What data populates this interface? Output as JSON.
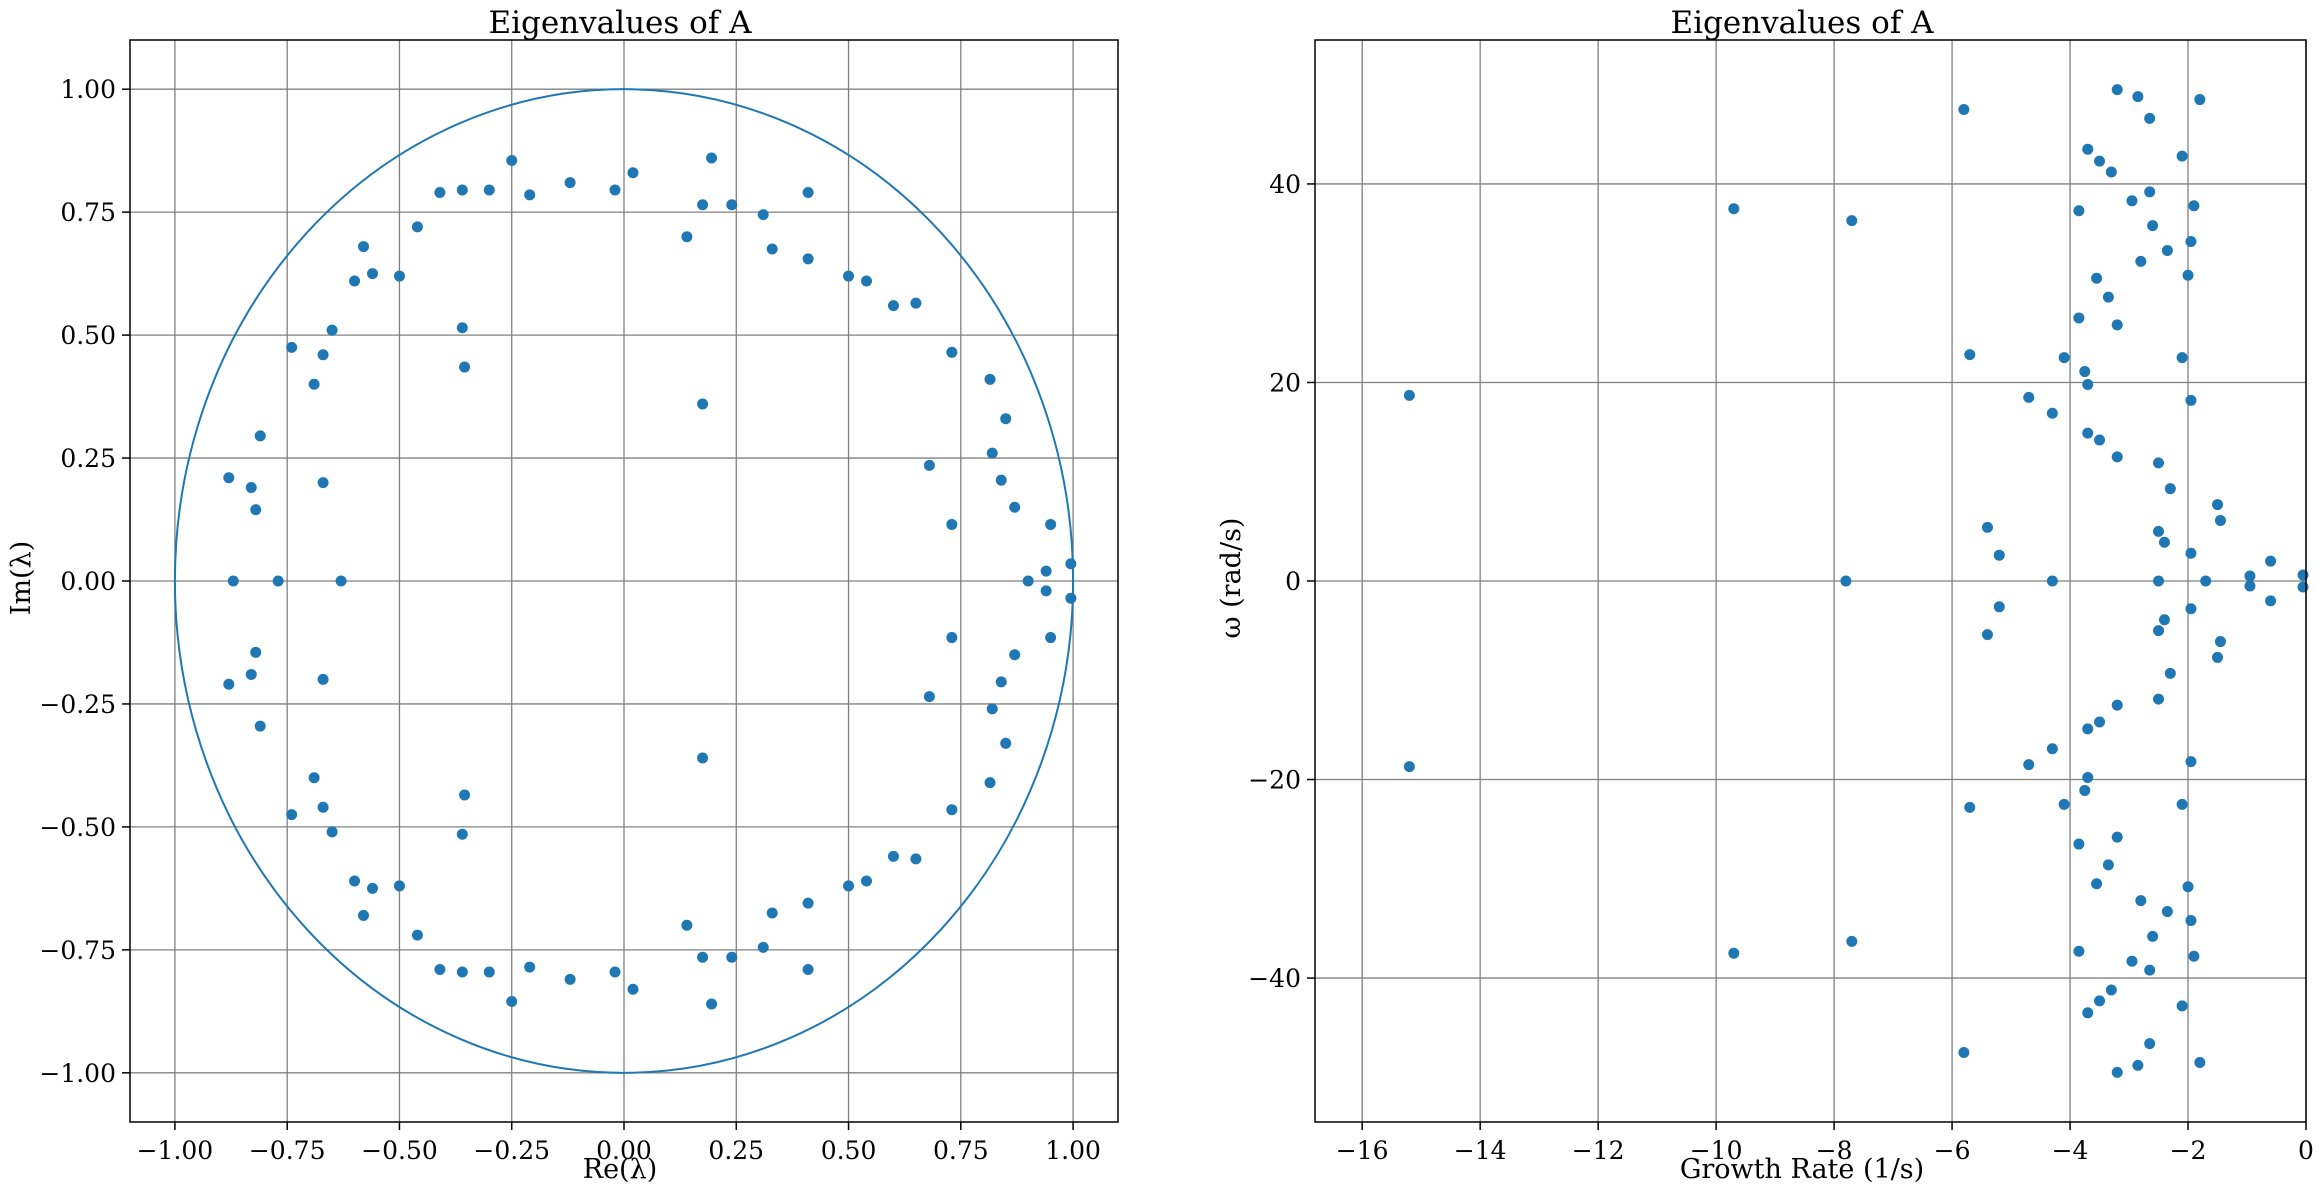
{
  "colors": {
    "marker": "#1f77b4",
    "circle": "#1f77b4",
    "grid": "#808080",
    "axes": "#000000"
  },
  "chart_data": [
    {
      "type": "scatter",
      "title": "Eigenvalues of A",
      "xlabel": "Re(λ)",
      "ylabel": "Im(λ)",
      "xlim": [
        -1.1,
        1.1
      ],
      "ylim": [
        -1.1,
        1.1
      ],
      "xticks": [
        -1.0,
        -0.75,
        -0.5,
        -0.25,
        0.0,
        0.25,
        0.5,
        0.75,
        1.0
      ],
      "xtick_labels": [
        "−1.00",
        "−0.75",
        "−0.50",
        "−0.25",
        "0.00",
        "0.25",
        "0.50",
        "0.75",
        "1.00"
      ],
      "yticks": [
        1.0,
        0.75,
        0.5,
        0.25,
        0.0,
        -0.25,
        -0.5,
        -0.75,
        -1.0
      ],
      "ytick_labels": [
        "1.00",
        "0.75",
        "0.50",
        "0.25",
        "0.00",
        "−0.25",
        "−0.50",
        "−0.75",
        "−1.00"
      ],
      "grid": true,
      "reference_curve": "unit circle",
      "symmetry": "complex-conjugate pairs (points mirrored across the real axis)",
      "points_upper_half": [
        [
          -0.25,
          0.855
        ],
        [
          -0.12,
          0.81
        ],
        [
          -0.21,
          0.785
        ],
        [
          -0.3,
          0.795
        ],
        [
          -0.36,
          0.795
        ],
        [
          -0.41,
          0.79
        ],
        [
          -0.02,
          0.795
        ],
        [
          0.02,
          0.83
        ],
        [
          0.195,
          0.86
        ],
        [
          0.175,
          0.765
        ],
        [
          0.14,
          0.7
        ],
        [
          0.24,
          0.765
        ],
        [
          0.31,
          0.745
        ],
        [
          0.33,
          0.675
        ],
        [
          0.41,
          0.79
        ],
        [
          0.41,
          0.655
        ],
        [
          0.5,
          0.62
        ],
        [
          0.54,
          0.61
        ],
        [
          0.6,
          0.56
        ],
        [
          0.65,
          0.565
        ],
        [
          0.73,
          0.465
        ],
        [
          -0.46,
          0.72
        ],
        [
          -0.5,
          0.62
        ],
        [
          -0.56,
          0.625
        ],
        [
          -0.58,
          0.68
        ],
        [
          -0.6,
          0.61
        ],
        [
          -0.65,
          0.51
        ],
        [
          -0.67,
          0.46
        ],
        [
          -0.74,
          0.475
        ],
        [
          -0.69,
          0.4
        ],
        [
          -0.36,
          0.515
        ],
        [
          -0.355,
          0.435
        ],
        [
          0.175,
          0.36
        ],
        [
          -0.67,
          0.2
        ],
        [
          -0.81,
          0.295
        ],
        [
          -0.88,
          0.21
        ],
        [
          -0.83,
          0.19
        ],
        [
          -0.82,
          0.145
        ],
        [
          0.815,
          0.41
        ],
        [
          0.85,
          0.33
        ],
        [
          0.82,
          0.26
        ],
        [
          0.84,
          0.205
        ],
        [
          0.87,
          0.15
        ],
        [
          0.68,
          0.235
        ],
        [
          0.73,
          0.115
        ],
        [
          0.95,
          0.115
        ],
        [
          0.94,
          0.02
        ],
        [
          0.995,
          0.035
        ]
      ],
      "points_real_axis": [
        [
          -0.87,
          0.0
        ],
        [
          -0.77,
          0.0
        ],
        [
          -0.63,
          0.0
        ],
        [
          0.9,
          0.0
        ]
      ]
    },
    {
      "type": "scatter",
      "title": "Eigenvalues of A",
      "xlabel": "Growth Rate (1/s)",
      "ylabel": "ω (rad/s)",
      "xlim": [
        -16.8,
        0
      ],
      "ylim": [
        -54.5,
        54.5
      ],
      "xticks": [
        -16,
        -14,
        -12,
        -10,
        -8,
        -6,
        -4,
        -2,
        0
      ],
      "xtick_labels": [
        "−16",
        "−14",
        "−12",
        "−10",
        "−8",
        "−6",
        "−4",
        "−2",
        "0"
      ],
      "yticks": [
        40,
        20,
        0,
        -20,
        -40
      ],
      "ytick_labels": [
        "40",
        "20",
        "0",
        "−20",
        "−40"
      ],
      "grid": true,
      "symmetry": "complex-conjugate pairs (points mirrored across ω = 0)",
      "points_upper_half": [
        [
          -15.2,
          18.7
        ],
        [
          -9.7,
          37.5
        ],
        [
          -7.7,
          36.3
        ],
        [
          -5.8,
          47.5
        ],
        [
          -5.7,
          22.8
        ],
        [
          -5.4,
          5.4
        ],
        [
          -5.2,
          2.6
        ],
        [
          -4.7,
          18.5
        ],
        [
          -4.3,
          16.9
        ],
        [
          -4.1,
          22.5
        ],
        [
          -3.85,
          26.5
        ],
        [
          -3.85,
          37.3
        ],
        [
          -3.75,
          21.1
        ],
        [
          -3.7,
          19.8
        ],
        [
          -3.7,
          14.9
        ],
        [
          -3.7,
          43.5
        ],
        [
          -3.55,
          30.5
        ],
        [
          -3.5,
          42.3
        ],
        [
          -3.5,
          14.2
        ],
        [
          -3.35,
          28.6
        ],
        [
          -3.3,
          41.2
        ],
        [
          -3.2,
          12.5
        ],
        [
          -3.2,
          49.5
        ],
        [
          -3.2,
          25.8
        ],
        [
          -2.95,
          38.3
        ],
        [
          -2.85,
          48.8
        ],
        [
          -2.8,
          32.2
        ],
        [
          -2.65,
          46.6
        ],
        [
          -2.65,
          39.2
        ],
        [
          -2.6,
          35.8
        ],
        [
          -2.5,
          11.9
        ],
        [
          -2.5,
          5.0
        ],
        [
          -2.4,
          3.9
        ],
        [
          -2.35,
          33.3
        ],
        [
          -2.3,
          9.3
        ],
        [
          -2.1,
          42.8
        ],
        [
          -2.1,
          22.5
        ],
        [
          -2.0,
          30.8
        ],
        [
          -1.95,
          34.2
        ],
        [
          -1.9,
          37.8
        ],
        [
          -1.95,
          18.2
        ],
        [
          -1.95,
          2.8
        ],
        [
          -1.8,
          48.5
        ],
        [
          -1.5,
          7.7
        ],
        [
          -1.45,
          6.1
        ],
        [
          -0.95,
          0.5
        ],
        [
          -0.6,
          2.0
        ],
        [
          -0.05,
          0.6
        ]
      ],
      "points_real_axis": [
        [
          -7.8,
          0.0
        ],
        [
          -4.3,
          0.0
        ],
        [
          -2.5,
          0.0
        ],
        [
          -1.7,
          0.0
        ]
      ]
    }
  ]
}
